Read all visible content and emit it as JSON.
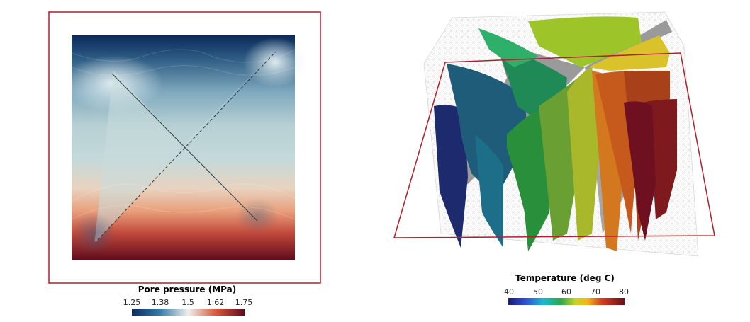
{
  "left_plot": {
    "colorbar": {
      "title": "Pore pressure (MPa)",
      "ticks": [
        "1.25",
        "1.38",
        "1.5",
        "1.62",
        "1.75"
      ]
    },
    "colors": {
      "low": "#0b2a5b",
      "mid": "#eaf0ef",
      "high": "#6b0a1f",
      "frame": "#b21e2a",
      "fracture": "#2b3a3f"
    }
  },
  "right_plot": {
    "colorbar": {
      "title": "Temperature (deg C)",
      "ticks": [
        "40",
        "50",
        "60",
        "70",
        "80"
      ]
    },
    "colors": {
      "frame": "#b21e2a",
      "fracture_gray": "#9a9a9a",
      "mesh": "#c8c8c8"
    }
  }
}
